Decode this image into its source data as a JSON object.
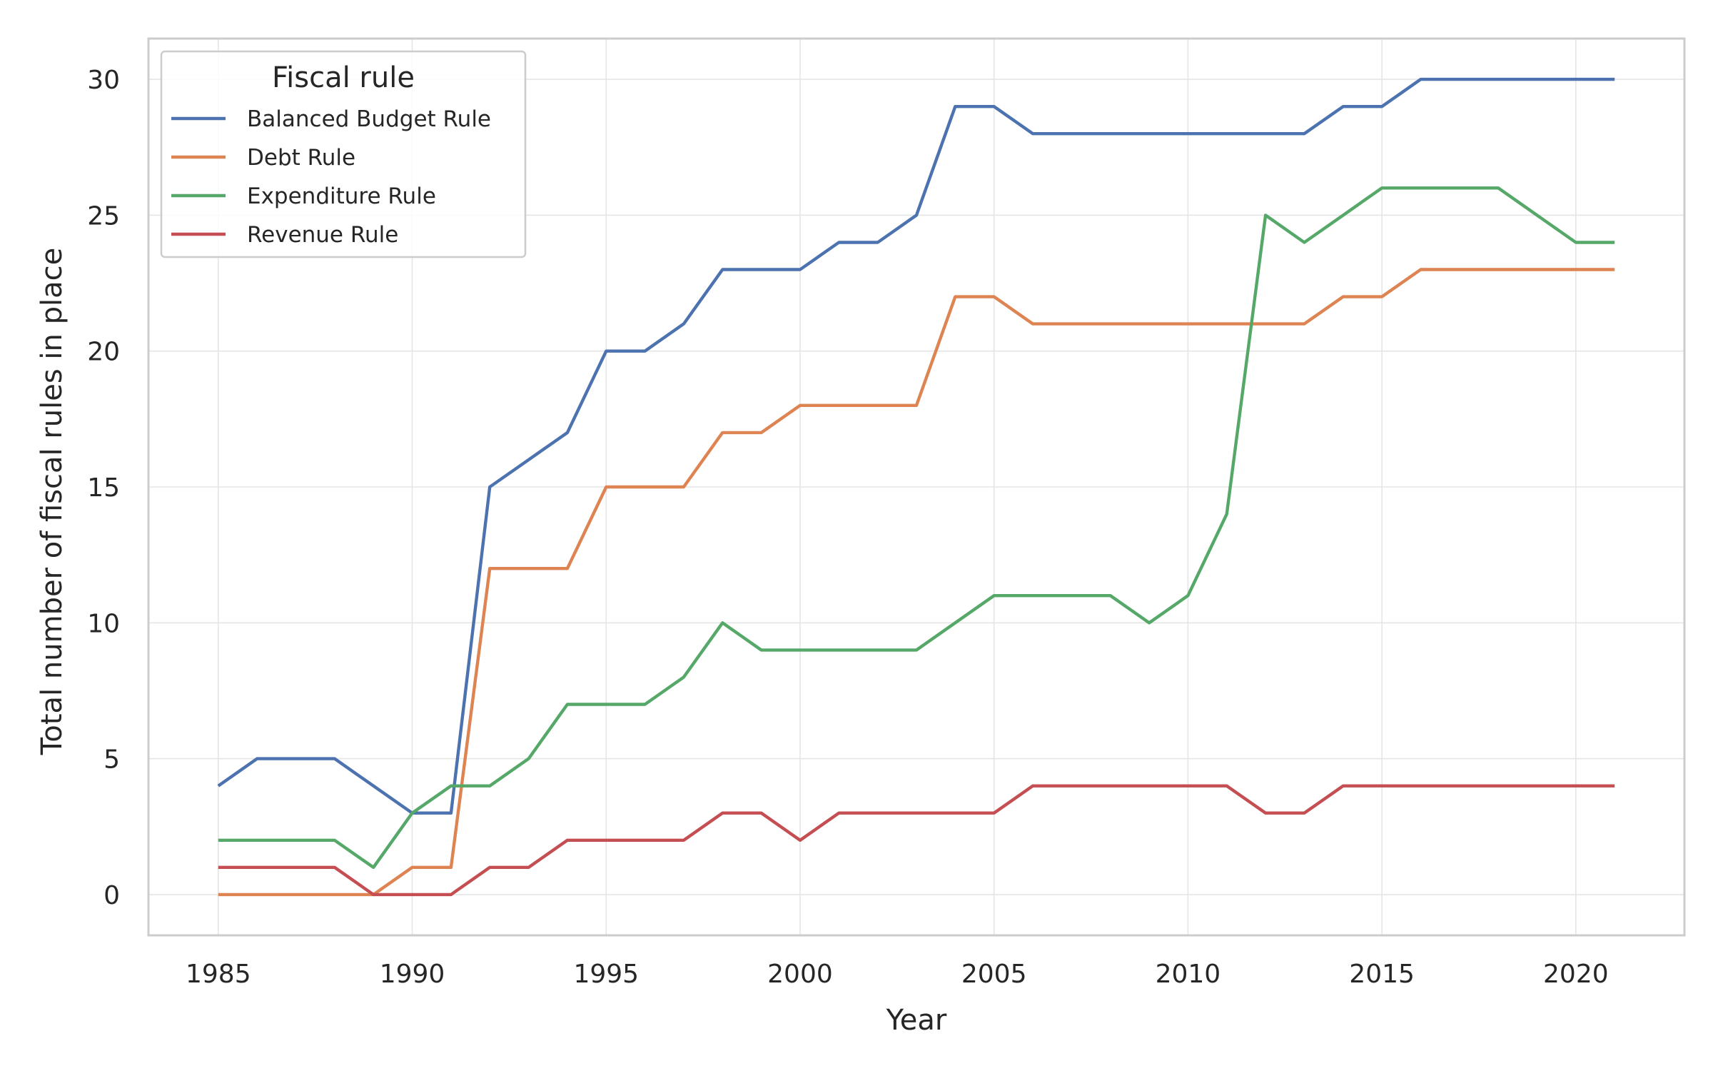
{
  "chart_data": {
    "type": "line",
    "xlabel": "Year",
    "ylabel": "Total number of fiscal rules in place",
    "xlim": [
      1983.2,
      2022.8
    ],
    "ylim": [
      -1.5,
      31.5
    ],
    "x_ticks": [
      1985,
      1990,
      1995,
      2000,
      2005,
      2010,
      2015,
      2020
    ],
    "y_ticks": [
      0,
      5,
      10,
      15,
      20,
      25,
      30
    ],
    "grid": true,
    "legend": {
      "title": "Fiscal rule",
      "placement": "top-left"
    },
    "x": [
      1985,
      1986,
      1987,
      1988,
      1989,
      1990,
      1991,
      1992,
      1993,
      1994,
      1995,
      1996,
      1997,
      1998,
      1999,
      2000,
      2001,
      2002,
      2003,
      2004,
      2005,
      2006,
      2007,
      2008,
      2009,
      2010,
      2011,
      2012,
      2013,
      2014,
      2015,
      2016,
      2017,
      2018,
      2019,
      2020,
      2021
    ],
    "series": [
      {
        "name": "Balanced Budget Rule",
        "color": "#4c72b0",
        "values": [
          4,
          5,
          5,
          5,
          4,
          3,
          3,
          15,
          16,
          17,
          20,
          20,
          21,
          23,
          23,
          23,
          24,
          24,
          25,
          29,
          29,
          28,
          28,
          28,
          28,
          28,
          28,
          28,
          28,
          29,
          29,
          30,
          30,
          30,
          30,
          30,
          30
        ]
      },
      {
        "name": "Debt Rule",
        "color": "#dd8452",
        "values": [
          0,
          0,
          0,
          0,
          0,
          1,
          1,
          12,
          12,
          12,
          15,
          15,
          15,
          17,
          17,
          18,
          18,
          18,
          18,
          22,
          22,
          21,
          21,
          21,
          21,
          21,
          21,
          21,
          21,
          22,
          22,
          23,
          23,
          23,
          23,
          23,
          23
        ]
      },
      {
        "name": "Expenditure Rule",
        "color": "#55a868",
        "values": [
          2,
          2,
          2,
          2,
          1,
          3,
          4,
          4,
          5,
          7,
          7,
          7,
          8,
          10,
          9,
          9,
          9,
          9,
          9,
          10,
          11,
          11,
          11,
          11,
          10,
          11,
          14,
          25,
          24,
          25,
          26,
          26,
          26,
          26,
          25,
          24,
          24
        ]
      },
      {
        "name": "Revenue Rule",
        "color": "#c44e52",
        "values": [
          1,
          1,
          1,
          1,
          0,
          0,
          0,
          1,
          1,
          2,
          2,
          2,
          2,
          3,
          3,
          2,
          3,
          3,
          3,
          3,
          3,
          4,
          4,
          4,
          4,
          4,
          4,
          3,
          3,
          4,
          4,
          4,
          4,
          4,
          4,
          4,
          4
        ]
      }
    ]
  }
}
